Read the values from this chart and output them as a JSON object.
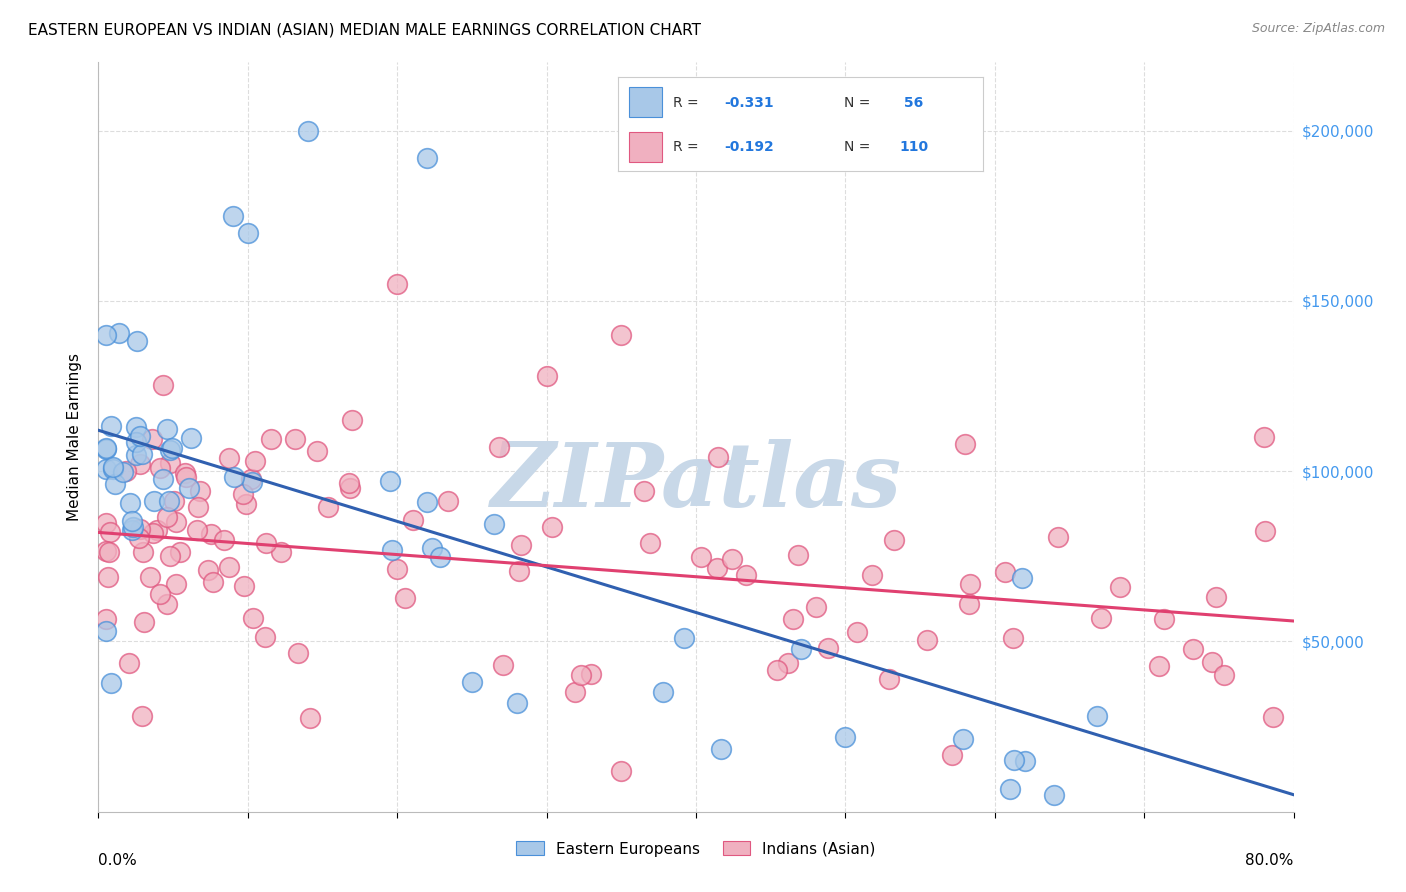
{
  "title": "EASTERN EUROPEAN VS INDIAN (ASIAN) MEDIAN MALE EARNINGS CORRELATION CHART",
  "source": "Source: ZipAtlas.com",
  "ylabel": "Median Male Earnings",
  "ytick_labels": [
    "$50,000",
    "$100,000",
    "$150,000",
    "$200,000"
  ],
  "ytick_values": [
    50000,
    100000,
    150000,
    200000
  ],
  "ylim": [
    0,
    220000
  ],
  "xlim": [
    0.0,
    0.8
  ],
  "color_blue": "#a8c8e8",
  "color_pink": "#f0b0c0",
  "color_blue_edge": "#4a90d9",
  "color_pink_edge": "#e05880",
  "color_blue_line": "#3060b0",
  "color_pink_line": "#e04070",
  "color_ytick": "#4499ee",
  "grid_color": "#dddddd",
  "bg_color": "#ffffff",
  "legend_r1": "-0.331",
  "legend_n1": "56",
  "legend_r2": "-0.192",
  "legend_n2": "110",
  "watermark_color": "#c8d8e8",
  "title_fontsize": 11,
  "source_fontsize": 9
}
